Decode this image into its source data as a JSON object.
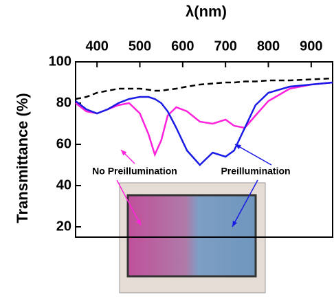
{
  "chart_data": {
    "type": "line",
    "x_label": "λ(nm)",
    "y_label": "Transmittance (%)",
    "x": [
      350,
      375,
      400,
      425,
      450,
      475,
      500,
      520,
      535,
      550,
      565,
      585,
      610,
      640,
      670,
      700,
      720,
      745,
      770,
      800,
      850,
      900,
      950
    ],
    "series": [
      {
        "name": "No Preillumination",
        "color": "#ff22dd",
        "dash": false,
        "values": [
          80,
          76,
          75,
          77,
          79,
          80,
          75,
          65,
          55,
          62,
          74,
          78,
          76,
          71,
          70,
          72,
          69,
          68,
          74,
          81,
          87,
          89,
          90
        ]
      },
      {
        "name": "Preillumination",
        "color": "#1a1ae6",
        "dash": false,
        "values": [
          81,
          77,
          75,
          77,
          80,
          82,
          83,
          83,
          82,
          80,
          76,
          68,
          57,
          50,
          56,
          54,
          57,
          68,
          79,
          85,
          88,
          89,
          90
        ]
      },
      {
        "color": "#000000",
        "dash": true,
        "values": [
          82,
          83,
          85,
          86,
          87,
          87,
          87,
          86.5,
          86,
          86,
          86.5,
          87,
          88,
          89,
          89.5,
          90,
          90,
          90.5,
          90.5,
          91,
          91,
          91.5,
          92
        ]
      }
    ],
    "xlim": [
      350,
      950
    ],
    "xticks": [
      400,
      500,
      600,
      700,
      800,
      900
    ],
    "ylim": [
      15,
      100
    ],
    "yticks": [
      20,
      40,
      60,
      80,
      100
    ]
  }
}
